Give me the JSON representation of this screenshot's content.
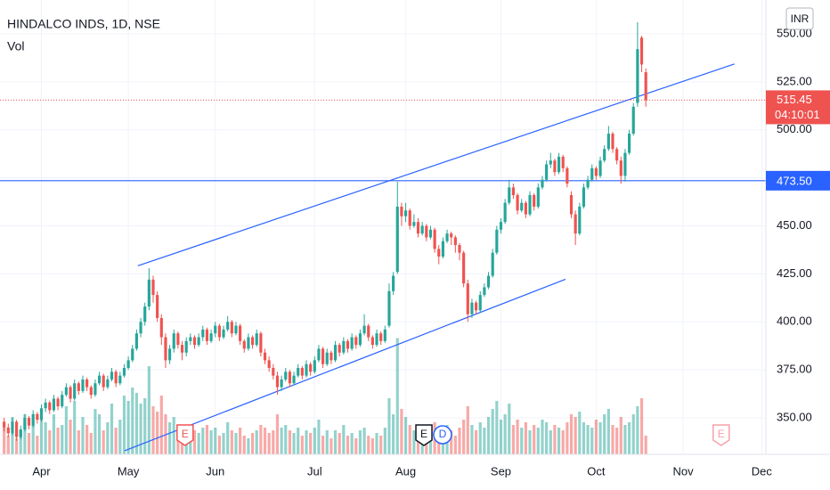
{
  "chart_data": {
    "type": "candlestick",
    "title": "HINDALCO INDS, 1D, NSE",
    "volume_label": "Vol",
    "currency": "INR",
    "up_color": "#26a69a",
    "down_color": "#ef5350",
    "grid": true,
    "xlim": [
      -1,
      184
    ],
    "xticks": [
      {
        "value": 9,
        "label": "Apr"
      },
      {
        "value": 30,
        "label": "May"
      },
      {
        "value": 51,
        "label": "Jun"
      },
      {
        "value": 75,
        "label": "Jul"
      },
      {
        "value": 97,
        "label": "Aug"
      },
      {
        "value": 120,
        "label": "Sep"
      },
      {
        "value": 143,
        "label": "Oct"
      },
      {
        "value": 164,
        "label": "Nov"
      },
      {
        "value": 183,
        "label": "Dec"
      }
    ],
    "ylim": [
      331,
      567.6
    ],
    "yticks": [
      {
        "value": 350,
        "label": "350.00"
      },
      {
        "value": 375,
        "label": "375.00"
      },
      {
        "value": 400,
        "label": "400.00"
      },
      {
        "value": 425,
        "label": "425.00"
      },
      {
        "value": 450,
        "label": "450.00"
      },
      {
        "value": 475,
        "label": "475.00"
      },
      {
        "value": 500,
        "label": "500.00"
      },
      {
        "value": 525,
        "label": "525.00"
      },
      {
        "value": 550,
        "label": "550.00"
      }
    ],
    "volume_lim": [
      0,
      100
    ],
    "ohlc": [
      [
        348,
        350,
        343,
        345
      ],
      [
        345,
        347,
        340,
        342
      ],
      [
        342,
        350,
        341,
        348
      ],
      [
        348,
        349,
        338,
        340
      ],
      [
        340,
        346,
        339,
        344
      ],
      [
        344,
        352,
        343,
        350
      ],
      [
        350,
        351,
        344,
        346
      ],
      [
        346,
        354,
        345,
        352
      ],
      [
        352,
        353,
        347,
        349
      ],
      [
        349,
        357,
        348,
        355
      ],
      [
        355,
        360,
        353,
        358
      ],
      [
        358,
        359,
        352,
        354
      ],
      [
        354,
        362,
        353,
        360
      ],
      [
        360,
        361,
        354,
        356
      ],
      [
        356,
        364,
        355,
        362
      ],
      [
        362,
        368,
        361,
        366
      ],
      [
        366,
        367,
        358,
        360
      ],
      [
        360,
        370,
        359,
        368
      ],
      [
        368,
        369,
        362,
        364
      ],
      [
        364,
        372,
        363,
        370
      ],
      [
        370,
        371,
        364,
        366
      ],
      [
        366,
        367,
        360,
        362
      ],
      [
        362,
        370,
        361,
        368
      ],
      [
        368,
        374,
        367,
        372
      ],
      [
        372,
        373,
        364,
        366
      ],
      [
        366,
        372,
        365,
        370
      ],
      [
        370,
        376,
        369,
        374
      ],
      [
        374,
        375,
        366,
        368
      ],
      [
        368,
        374,
        367,
        372
      ],
      [
        372,
        378,
        371,
        376
      ],
      [
        376,
        382,
        375,
        380
      ],
      [
        380,
        388,
        379,
        386
      ],
      [
        386,
        396,
        385,
        394
      ],
      [
        394,
        402,
        392,
        400
      ],
      [
        400,
        410,
        398,
        408
      ],
      [
        408,
        428,
        406,
        422
      ],
      [
        422,
        424,
        410,
        414
      ],
      [
        414,
        416,
        400,
        402
      ],
      [
        402,
        404,
        388,
        392
      ],
      [
        392,
        394,
        376,
        380
      ],
      [
        380,
        388,
        378,
        386
      ],
      [
        386,
        396,
        384,
        394
      ],
      [
        394,
        395,
        386,
        388
      ],
      [
        388,
        390,
        380,
        384
      ],
      [
        384,
        392,
        382,
        390
      ],
      [
        390,
        394,
        388,
        392
      ],
      [
        392,
        393,
        386,
        388
      ],
      [
        388,
        394,
        387,
        392
      ],
      [
        392,
        398,
        390,
        396
      ],
      [
        396,
        397,
        388,
        390
      ],
      [
        390,
        396,
        389,
        394
      ],
      [
        394,
        400,
        392,
        398
      ],
      [
        398,
        399,
        390,
        392
      ],
      [
        392,
        398,
        391,
        396
      ],
      [
        396,
        403,
        395,
        400
      ],
      [
        400,
        401,
        392,
        394
      ],
      [
        394,
        400,
        393,
        398
      ],
      [
        398,
        399,
        388,
        390
      ],
      [
        390,
        391,
        384,
        386
      ],
      [
        386,
        394,
        385,
        392
      ],
      [
        392,
        393,
        386,
        388
      ],
      [
        388,
        396,
        387,
        394
      ],
      [
        394,
        395,
        382,
        384
      ],
      [
        384,
        386,
        378,
        380
      ],
      [
        380,
        382,
        374,
        376
      ],
      [
        376,
        378,
        370,
        372
      ],
      [
        372,
        374,
        362,
        366
      ],
      [
        366,
        372,
        364,
        370
      ],
      [
        370,
        376,
        369,
        374
      ],
      [
        374,
        375,
        366,
        368
      ],
      [
        368,
        374,
        367,
        372
      ],
      [
        372,
        378,
        371,
        376
      ],
      [
        376,
        377,
        370,
        372
      ],
      [
        372,
        380,
        371,
        378
      ],
      [
        378,
        379,
        372,
        374
      ],
      [
        374,
        382,
        373,
        380
      ],
      [
        380,
        388,
        379,
        386
      ],
      [
        386,
        387,
        376,
        378
      ],
      [
        378,
        386,
        377,
        384
      ],
      [
        384,
        385,
        378,
        380
      ],
      [
        380,
        390,
        379,
        388
      ],
      [
        388,
        389,
        382,
        384
      ],
      [
        384,
        392,
        383,
        390
      ],
      [
        390,
        391,
        384,
        386
      ],
      [
        386,
        394,
        385,
        392
      ],
      [
        392,
        393,
        386,
        388
      ],
      [
        388,
        396,
        387,
        394
      ],
      [
        394,
        404,
        393,
        398
      ],
      [
        398,
        399,
        390,
        392
      ],
      [
        392,
        393,
        386,
        388
      ],
      [
        388,
        396,
        387,
        394
      ],
      [
        394,
        395,
        388,
        390
      ],
      [
        390,
        398,
        389,
        396
      ],
      [
        398,
        420,
        397,
        416
      ],
      [
        416,
        426,
        414,
        424
      ],
      [
        426,
        473,
        425,
        460
      ],
      [
        460,
        462,
        450,
        455
      ],
      [
        455,
        462,
        452,
        458
      ],
      [
        458,
        459,
        448,
        450
      ],
      [
        450,
        456,
        449,
        452
      ],
      [
        452,
        454,
        444,
        446
      ],
      [
        446,
        452,
        445,
        450
      ],
      [
        450,
        451,
        442,
        444
      ],
      [
        444,
        450,
        443,
        448
      ],
      [
        448,
        449,
        436,
        438
      ],
      [
        438,
        440,
        430,
        434
      ],
      [
        434,
        444,
        433,
        442
      ],
      [
        442,
        448,
        441,
        446
      ],
      [
        446,
        447,
        440,
        444
      ],
      [
        444,
        445,
        436,
        440
      ],
      [
        440,
        441,
        432,
        436
      ],
      [
        436,
        437,
        418,
        420
      ],
      [
        420,
        422,
        400,
        404
      ],
      [
        404,
        412,
        402,
        410
      ],
      [
        410,
        411,
        404,
        406
      ],
      [
        406,
        416,
        405,
        414
      ],
      [
        414,
        420,
        413,
        418
      ],
      [
        418,
        426,
        417,
        424
      ],
      [
        424,
        438,
        423,
        436
      ],
      [
        436,
        450,
        435,
        448
      ],
      [
        448,
        454,
        446,
        452
      ],
      [
        452,
        464,
        451,
        462
      ],
      [
        462,
        474,
        461,
        470
      ],
      [
        470,
        472,
        464,
        466
      ],
      [
        466,
        467,
        456,
        458
      ],
      [
        458,
        464,
        457,
        462
      ],
      [
        462,
        463,
        454,
        456
      ],
      [
        456,
        468,
        455,
        466
      ],
      [
        466,
        467,
        458,
        460
      ],
      [
        460,
        472,
        459,
        470
      ],
      [
        470,
        476,
        469,
        474
      ],
      [
        474,
        484,
        473,
        482
      ],
      [
        482,
        488,
        480,
        484
      ],
      [
        484,
        485,
        476,
        478
      ],
      [
        478,
        488,
        477,
        486
      ],
      [
        486,
        487,
        478,
        480
      ],
      [
        480,
        481,
        470,
        472
      ],
      [
        466,
        468,
        454,
        456
      ],
      [
        456,
        458,
        440,
        446
      ],
      [
        446,
        462,
        445,
        460
      ],
      [
        460,
        472,
        459,
        470
      ],
      [
        470,
        476,
        469,
        474
      ],
      [
        474,
        482,
        473,
        480
      ],
      [
        480,
        481,
        474,
        476
      ],
      [
        476,
        486,
        475,
        484
      ],
      [
        484,
        492,
        483,
        490
      ],
      [
        490,
        502,
        489,
        498
      ],
      [
        498,
        499,
        488,
        490
      ],
      [
        490,
        491,
        482,
        484
      ],
      [
        484,
        486,
        472,
        476
      ],
      [
        476,
        490,
        473,
        488
      ],
      [
        488,
        500,
        487,
        498
      ],
      [
        498,
        514,
        497,
        512
      ],
      [
        514,
        556,
        512,
        542
      ],
      [
        548,
        549,
        530,
        534
      ],
      [
        530,
        532,
        512,
        515.45
      ]
    ],
    "volume": [
      20,
      14,
      28,
      12,
      18,
      30,
      16,
      22,
      14,
      26,
      24,
      18,
      30,
      20,
      22,
      36,
      26,
      40,
      18,
      28,
      22,
      16,
      34,
      30,
      18,
      24,
      38,
      20,
      26,
      44,
      40,
      50,
      46,
      38,
      42,
      66,
      36,
      32,
      44,
      30,
      24,
      28,
      18,
      22,
      20,
      14,
      18,
      16,
      20,
      22,
      18,
      20,
      14,
      16,
      24,
      18,
      16,
      20,
      14,
      12,
      16,
      18,
      22,
      20,
      16,
      18,
      30,
      20,
      22,
      18,
      16,
      20,
      14,
      18,
      16,
      20,
      26,
      14,
      18,
      12,
      18,
      16,
      22,
      14,
      16,
      12,
      18,
      20,
      14,
      12,
      16,
      14,
      20,
      42,
      30,
      87,
      34,
      28,
      22,
      18,
      16,
      20,
      14,
      18,
      24,
      20,
      16,
      22,
      18,
      14,
      20,
      26,
      36,
      22,
      18,
      24,
      20,
      28,
      34,
      40,
      26,
      30,
      38,
      22,
      26,
      20,
      24,
      18,
      22,
      20,
      26,
      24,
      18,
      22,
      20,
      18,
      24,
      30,
      28,
      32,
      24,
      22,
      20,
      26,
      24,
      30,
      34,
      22,
      20,
      28,
      22,
      24,
      30,
      36,
      42,
      14
    ],
    "last_price": {
      "value": 515.45,
      "label": "515.45"
    },
    "countdown": "04:10:01",
    "hline": {
      "value": 473.5,
      "label": "473.50",
      "color": "#2962ff"
    },
    "trendlines": [
      {
        "color": "#2962ff",
        "points": [
          [
            32.3,
            429.2
          ],
          [
            176.4,
            534.3
          ]
        ]
      },
      {
        "color": "#2962ff",
        "points": [
          [
            29.1,
            332.9
          ],
          [
            135.6,
            422.2
          ]
        ]
      }
    ],
    "events": [
      {
        "label": "E",
        "x": 43.7,
        "color": "#ef5350"
      },
      {
        "label": "E",
        "x": 101.4,
        "color": "#131722"
      },
      {
        "label": "D",
        "x": 105.9,
        "color": "#2962ff"
      },
      {
        "label": "E",
        "x": 173.2,
        "color": "#f7a1a8"
      }
    ]
  }
}
